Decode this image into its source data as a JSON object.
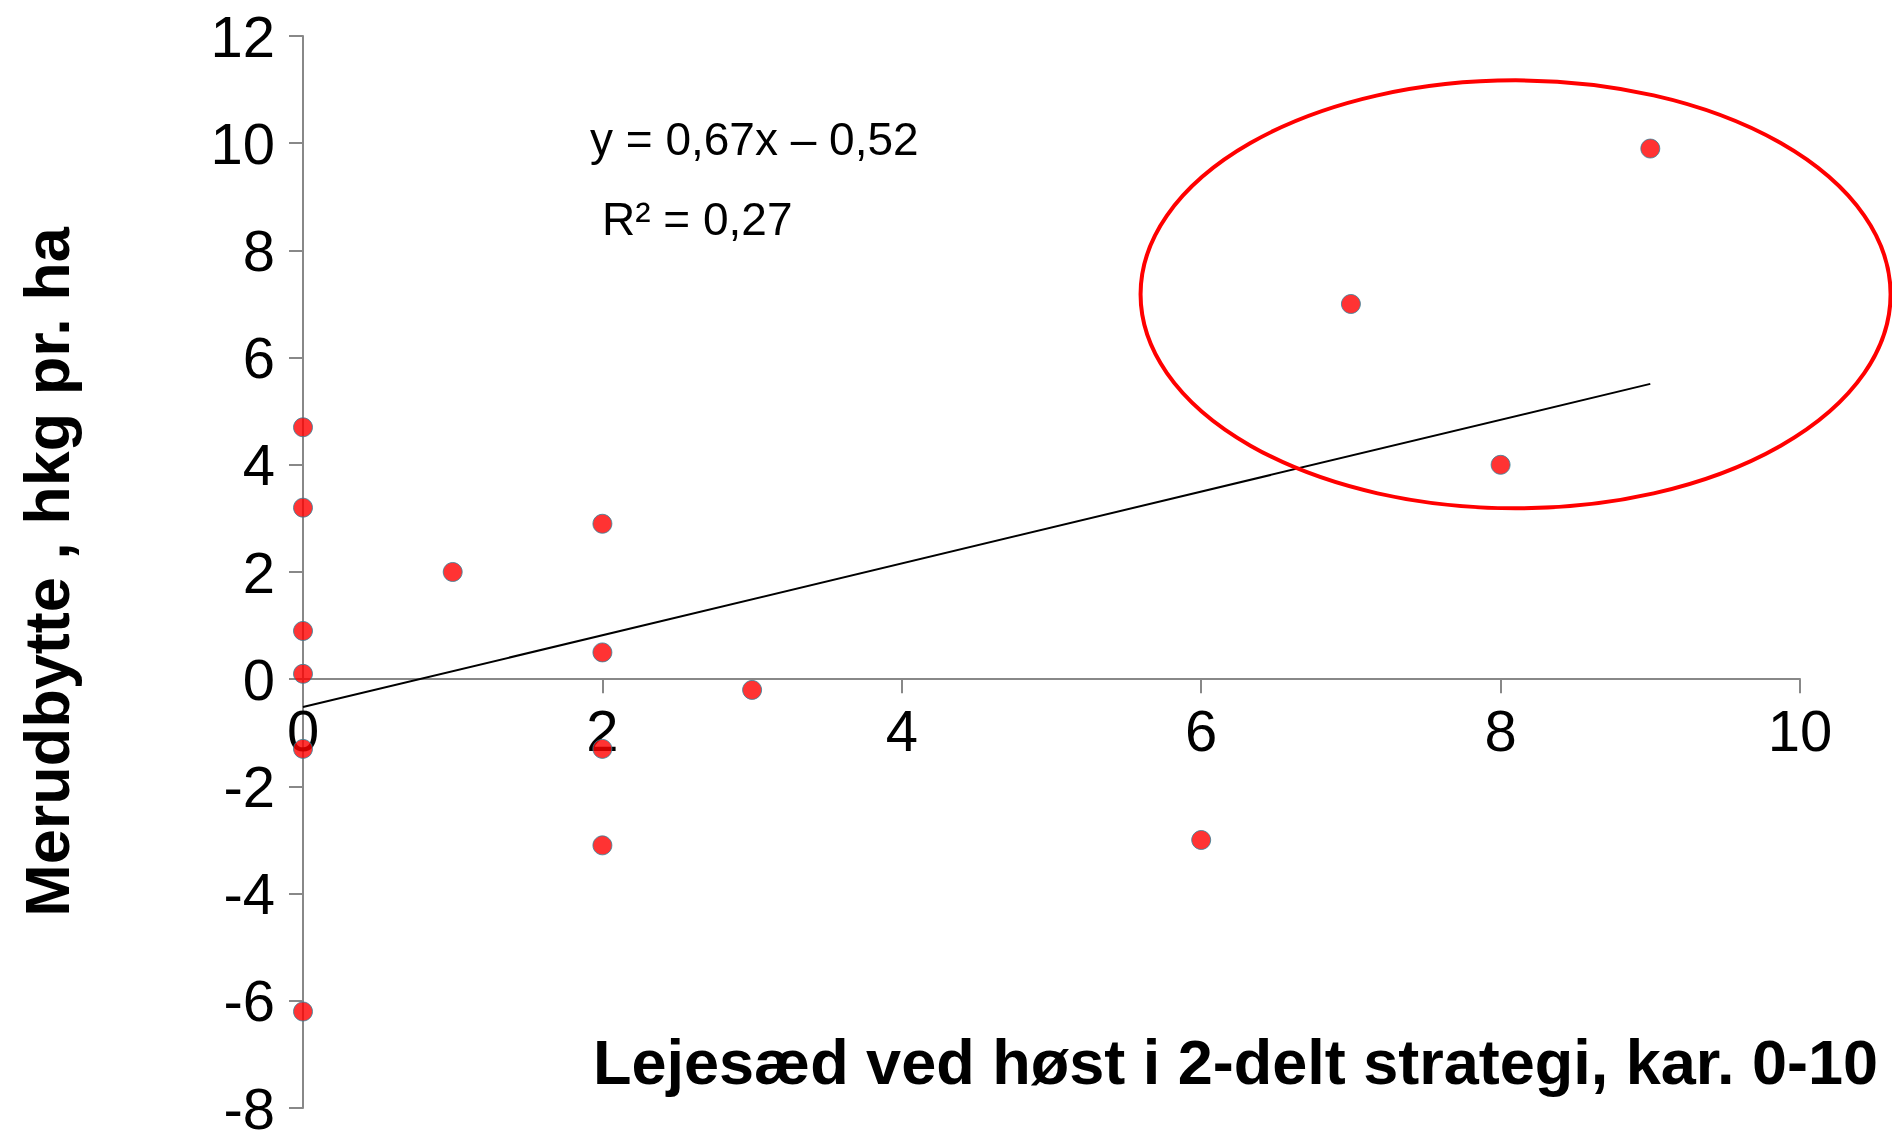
{
  "chart_data": {
    "type": "scatter",
    "xlabel": "Lejesæd ved høst i 2-delt strategi, kar. 0-10",
    "ylabel": "Merudbytte , hkg pr. ha",
    "annotations": [
      "y = 0,67x – 0,52",
      "R² = 0,27"
    ],
    "series": [
      {
        "color": "#ff0000",
        "marker": "circle",
        "x": [
          0,
          0,
          0,
          0,
          0,
          0,
          1,
          2,
          2,
          2,
          2,
          3,
          6,
          7,
          8,
          9
        ],
        "values": [
          4.7,
          3.2,
          0.9,
          0.1,
          -1.3,
          -6.2,
          2.0,
          2.9,
          0.5,
          -1.3,
          -3.1,
          -0.2,
          -3.0,
          7.0,
          4.0,
          9.9
        ]
      },
      {
        "type": "line",
        "color": "#000000",
        "marker": "none",
        "x": [
          0,
          9
        ],
        "values": [
          -0.52,
          5.51
        ]
      }
    ],
    "xlim": [
      0,
      10
    ],
    "xticks": [
      0,
      2,
      4,
      6,
      8,
      10
    ],
    "ylim": [
      -8,
      12
    ],
    "yticks": [
      -8,
      -6,
      -4,
      -2,
      0,
      2,
      4,
      6,
      8,
      10,
      12
    ]
  }
}
